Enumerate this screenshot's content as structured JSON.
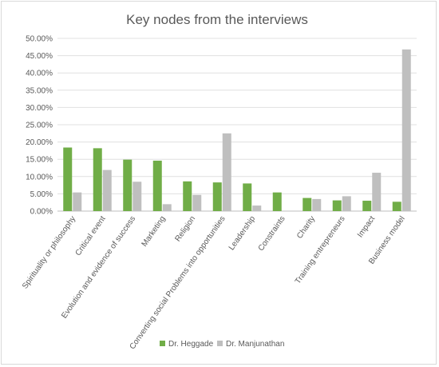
{
  "chart_data": {
    "type": "bar",
    "title": "Key nodes from the interviews",
    "categories": [
      "Spirituality or philosophy",
      "Critical event",
      "Evolution and evidence of success",
      "Marketing",
      "Religion",
      "Converting social Problems into opportunities",
      "Leadership",
      "Constraints",
      "Charity",
      "Training entrepreneurs",
      "Impact",
      "Business model"
    ],
    "series": [
      {
        "name": "Dr. Heggade",
        "color": "#70ad47",
        "values": [
          18.4,
          18.2,
          14.9,
          14.6,
          8.6,
          8.3,
          8.0,
          5.4,
          3.8,
          3.1,
          3.0,
          2.7
        ]
      },
      {
        "name": "Dr. Manjunathan",
        "color": "#bfbfbf",
        "values": [
          5.4,
          11.9,
          8.5,
          2.0,
          4.7,
          22.5,
          1.6,
          0.0,
          3.5,
          4.3,
          11.1,
          46.8
        ]
      }
    ],
    "yticks": [
      "0.00%",
      "5.00%",
      "10.00%",
      "15.00%",
      "20.00%",
      "25.00%",
      "30.00%",
      "35.00%",
      "40.00%",
      "45.00%",
      "50.00%"
    ],
    "ylim": [
      0,
      50
    ],
    "grid": true,
    "legend_position": "bottom"
  }
}
